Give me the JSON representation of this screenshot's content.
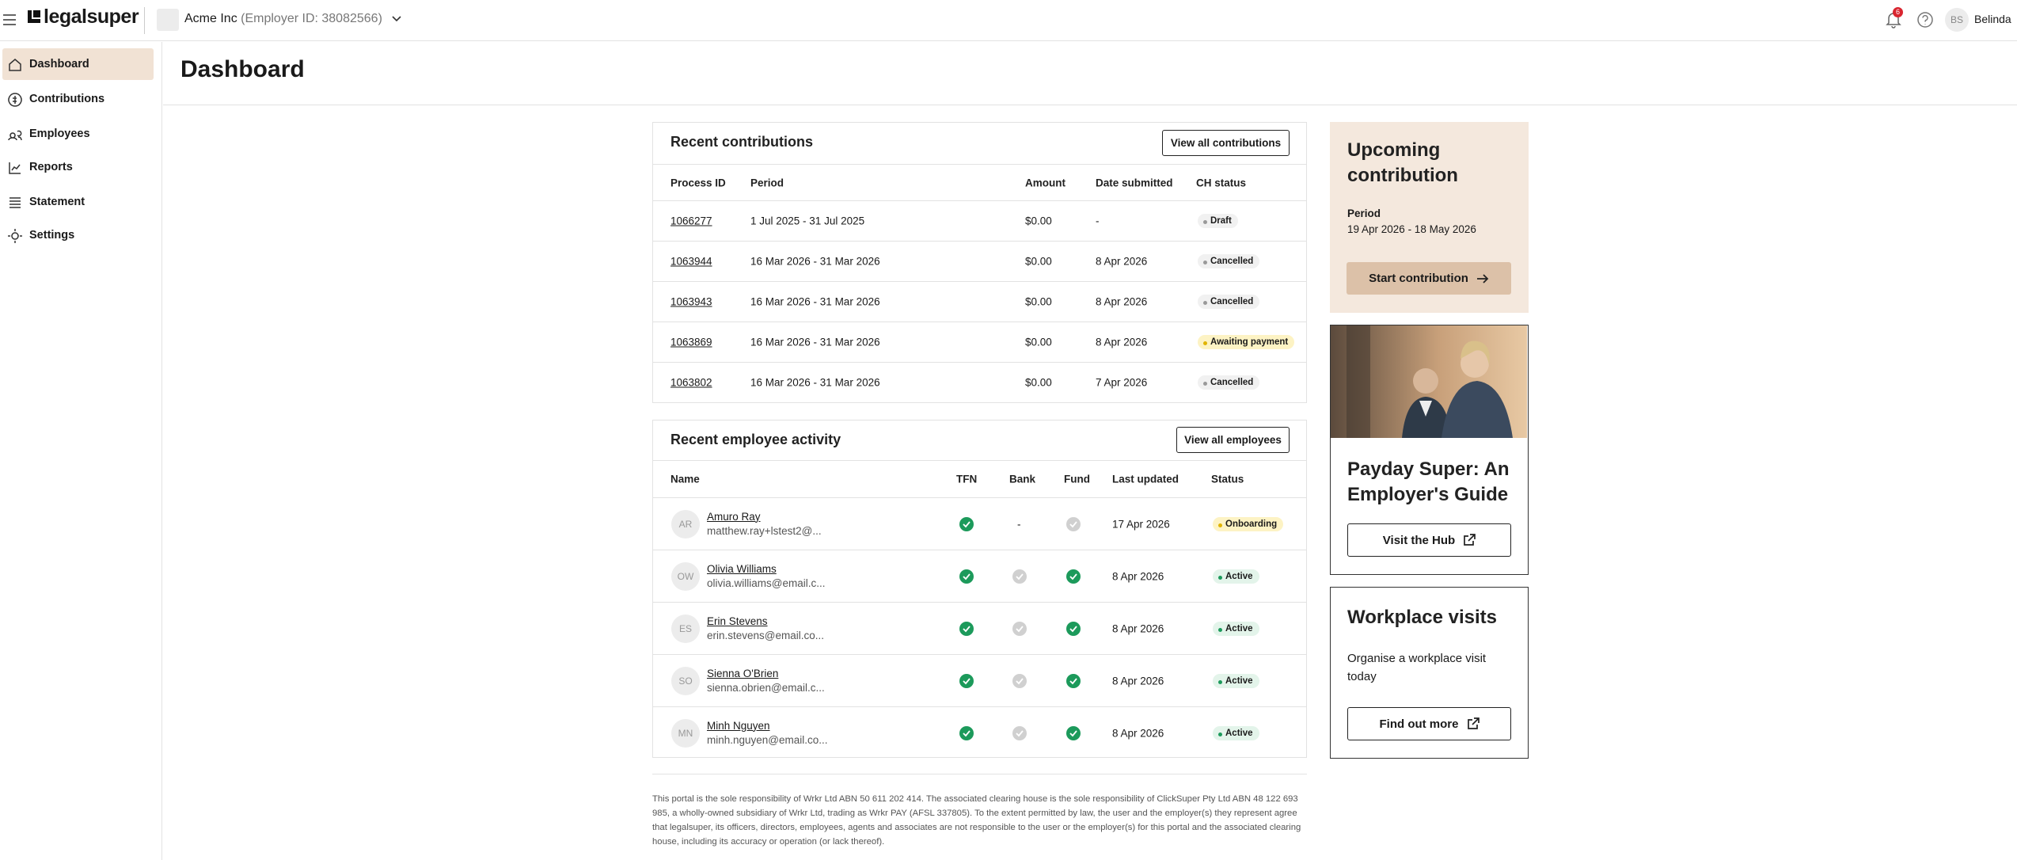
{
  "header": {
    "brand": "legalsuper",
    "employer_name": "Acme Inc",
    "employer_id": "(Employer ID: 38082566)",
    "notifications": "6",
    "user_initials": "BS",
    "user_name": "Belinda"
  },
  "sidebar": {
    "items": [
      "Dashboard",
      "Contributions",
      "Employees",
      "Reports",
      "Statement",
      "Settings"
    ],
    "active": 0
  },
  "page": {
    "title": "Dashboard"
  },
  "contributions": {
    "title": "Recent contributions",
    "button": "View all contributions",
    "columns": [
      "Process ID",
      "Period",
      "Amount",
      "Date submitted",
      "CH status"
    ],
    "rows": [
      {
        "id": "1066277",
        "period": "1 Jul 2025 - 31 Jul 2025",
        "amount": "$0.00",
        "date": "-",
        "status": "Draft",
        "status_color": "#999999",
        "status_bg": "#f1f1f1"
      },
      {
        "id": "1063944",
        "period": "16 Mar 2026 - 31 Mar 2026",
        "amount": "$0.00",
        "date": "8 Apr 2026",
        "status": "Cancelled",
        "status_color": "#999999",
        "status_bg": "#f1f1f1"
      },
      {
        "id": "1063943",
        "period": "16 Mar 2026 - 31 Mar 2026",
        "amount": "$0.00",
        "date": "8 Apr 2026",
        "status": "Cancelled",
        "status_color": "#999999",
        "status_bg": "#f1f1f1"
      },
      {
        "id": "1063869",
        "period": "16 Mar 2026 - 31 Mar 2026",
        "amount": "$0.00",
        "date": "8 Apr 2026",
        "status": "Awaiting payment",
        "status_color": "#e0b400",
        "status_bg": "#fdf3c4"
      },
      {
        "id": "1063802",
        "period": "16 Mar 2026 - 31 Mar 2026",
        "amount": "$0.00",
        "date": "7 Apr 2026",
        "status": "Cancelled",
        "status_color": "#999999",
        "status_bg": "#f1f1f1"
      }
    ]
  },
  "employees": {
    "title": "Recent employee activity",
    "button": "View all employees",
    "columns": [
      "Name",
      "TFN",
      "Bank",
      "Fund",
      "Last updated",
      "Status"
    ],
    "rows": [
      {
        "initials": "AR",
        "name": "Amuro Ray",
        "email": "matthew.ray+lstest2@...",
        "tfn": true,
        "bank": "-",
        "fund": false,
        "updated": "17 Apr 2026",
        "status": "Onboarding",
        "status_color": "#e0b400",
        "status_bg": "#fdf3c4"
      },
      {
        "initials": "OW",
        "name": "Olivia Williams",
        "email": "olivia.williams@email.c...",
        "tfn": true,
        "bank": false,
        "fund": true,
        "updated": "8 Apr 2026",
        "status": "Active",
        "status_color": "#1c9a5b",
        "status_bg": "#e3f4ea"
      },
      {
        "initials": "ES",
        "name": "Erin Stevens",
        "email": "erin.stevens@email.co...",
        "tfn": true,
        "bank": false,
        "fund": true,
        "updated": "8 Apr 2026",
        "status": "Active",
        "status_color": "#1c9a5b",
        "status_bg": "#e3f4ea"
      },
      {
        "initials": "SO",
        "name": "Sienna O'Brien",
        "email": "sienna.obrien@email.c...",
        "tfn": true,
        "bank": false,
        "fund": true,
        "updated": "8 Apr 2026",
        "status": "Active",
        "status_color": "#1c9a5b",
        "status_bg": "#e3f4ea"
      },
      {
        "initials": "MN",
        "name": "Minh Nguyen",
        "email": "minh.nguyen@email.co...",
        "tfn": true,
        "bank": false,
        "fund": true,
        "updated": "8 Apr 2026",
        "status": "Active",
        "status_color": "#1c9a5b",
        "status_bg": "#e3f4ea"
      }
    ]
  },
  "upcoming": {
    "title": "Upcoming contribution",
    "period_label": "Period",
    "period": "19 Apr 2026 - 18 May 2026",
    "button": "Start contribution"
  },
  "guide": {
    "title": "Payday Super: An Employer's Guide",
    "button": "Visit the Hub"
  },
  "visits": {
    "title": "Workplace visits",
    "text": "Organise a workplace visit today",
    "button": "Find out more"
  },
  "footer": {
    "text": "This portal is the sole responsibility of Wrkr Ltd ABN 50 611 202 414. The associated clearing house is the sole responsibility of ClickSuper Pty Ltd ABN 48 122 693 985, a wholly-owned subsidiary of Wrkr Ltd, trading as Wrkr PAY (AFSL 337805). To the extent permitted by law, the user and the employer(s) they represent agree that legalsuper, its officers, directors, employees, agents and associates are not responsible to the user or the employer(s) for this portal and the associated clearing house, including its accuracy or operation (or lack thereof)."
  }
}
